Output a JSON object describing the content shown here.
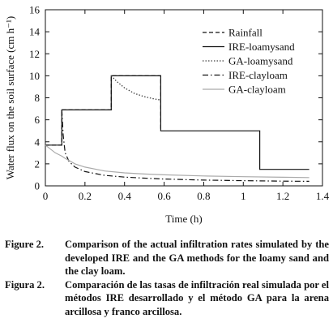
{
  "chart_data": {
    "type": "line",
    "title": "",
    "xlabel": "Time (h)",
    "ylabel": "Water flux on the soil surface (cm h⁻¹)",
    "xlim": [
      0,
      1.4
    ],
    "ylim": [
      0,
      16
    ],
    "xticks": [
      "0",
      "0.2",
      "0.4",
      "0.6",
      "0.8",
      "1",
      "1.2",
      "1.4"
    ],
    "yticks": [
      "0",
      "2",
      "4",
      "6",
      "8",
      "10",
      "12",
      "14",
      "16"
    ],
    "legend_position": "top-right",
    "grid": false,
    "series": [
      {
        "name": "Rainfall",
        "style": "dashed",
        "color": "#111111",
        "x": [
          0,
          0.083,
          0.083,
          0.333,
          0.333,
          0.583,
          0.583
        ],
        "y": [
          3.7,
          3.7,
          6.9,
          6.9,
          10,
          10,
          5
        ]
      },
      {
        "name": "IRE-loamysand",
        "style": "solid",
        "color": "#111111",
        "x": [
          0,
          0.083,
          0.083,
          0.333,
          0.333,
          0.583,
          0.583,
          1.083,
          1.083,
          1.333
        ],
        "y": [
          3.7,
          3.7,
          6.9,
          6.9,
          10,
          10,
          5,
          5,
          1.5,
          1.5
        ]
      },
      {
        "name": "GA-loamysand",
        "style": "dotted",
        "color": "#444444",
        "x": [
          0.333,
          0.36,
          0.4,
          0.45,
          0.5,
          0.55,
          0.583
        ],
        "y": [
          10,
          9.5,
          8.9,
          8.4,
          8.1,
          7.9,
          7.8
        ]
      },
      {
        "name": "IRE-clayloam",
        "style": "dashdot",
        "color": "#111111",
        "x": [
          0.083,
          0.09,
          0.1,
          0.12,
          0.15,
          0.2,
          0.3,
          0.4,
          0.5,
          0.6,
          0.8,
          1.0,
          1.2,
          1.333
        ],
        "y": [
          6.9,
          4.6,
          3.0,
          2.2,
          1.7,
          1.3,
          0.95,
          0.8,
          0.7,
          0.62,
          0.52,
          0.47,
          0.43,
          0.41
        ]
      },
      {
        "name": "GA-clayloam",
        "style": "solid",
        "color": "#aaaaaa",
        "x": [
          0,
          0.05,
          0.083,
          0.1,
          0.15,
          0.2,
          0.3,
          0.4,
          0.5,
          0.6,
          0.8,
          1.0,
          1.2,
          1.333
        ],
        "y": [
          3.7,
          3.0,
          2.7,
          2.5,
          2.0,
          1.7,
          1.35,
          1.18,
          1.08,
          1.0,
          0.9,
          0.83,
          0.78,
          0.75
        ]
      }
    ]
  },
  "caption": {
    "en_label": "Figure 2.",
    "en_text": "Comparison of the actual infiltration rates simulated by the developed IRE and the GA methods for the loamy sand and the clay loam.",
    "es_label": "Figura 2.",
    "es_text": "Comparación de las tasas de infiltración real simulada por el métodos IRE desarrollado y el método GA para la arena arcillosa y franco arcillosa."
  }
}
